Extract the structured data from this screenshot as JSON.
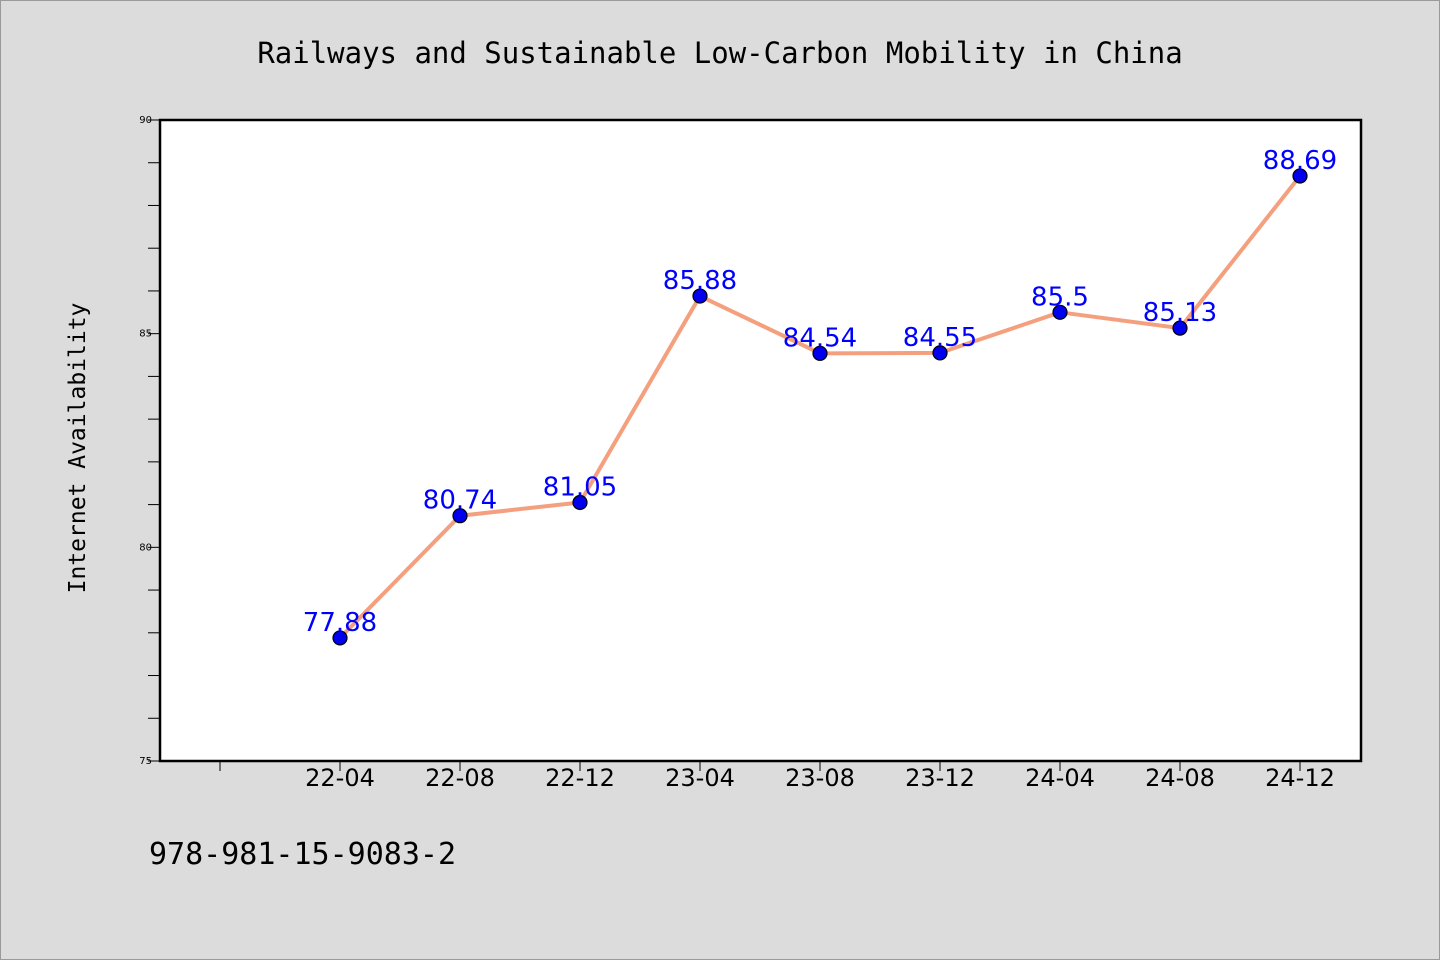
{
  "footer_text": "978-981-15-9083-2",
  "chart_data": {
    "type": "line",
    "title": "Railways and Sustainable Low-Carbon Mobility in China",
    "xlabel": "",
    "ylabel": "Internet Availability",
    "categories": [
      "22-04",
      "22-08",
      "22-12",
      "23-04",
      "23-08",
      "23-12",
      "24-04",
      "24-08",
      "24-12"
    ],
    "values": [
      77.88,
      80.74,
      81.05,
      85.88,
      84.54,
      84.55,
      85.5,
      85.13,
      88.69
    ],
    "data_labels": [
      "77.88",
      "80.74",
      "81.05",
      "85.88",
      "84.54",
      "84.55",
      "85.5",
      "85.13",
      "88.69"
    ],
    "ylim": [
      75,
      90
    ],
    "yticks": [
      75,
      80,
      85,
      90
    ],
    "grid": false,
    "line_color": "#f4a07f",
    "marker_color": "#0000ee",
    "label_color": "#0000ff",
    "plot_background": "#ffffff",
    "figure_background": "#dcdcdc"
  }
}
